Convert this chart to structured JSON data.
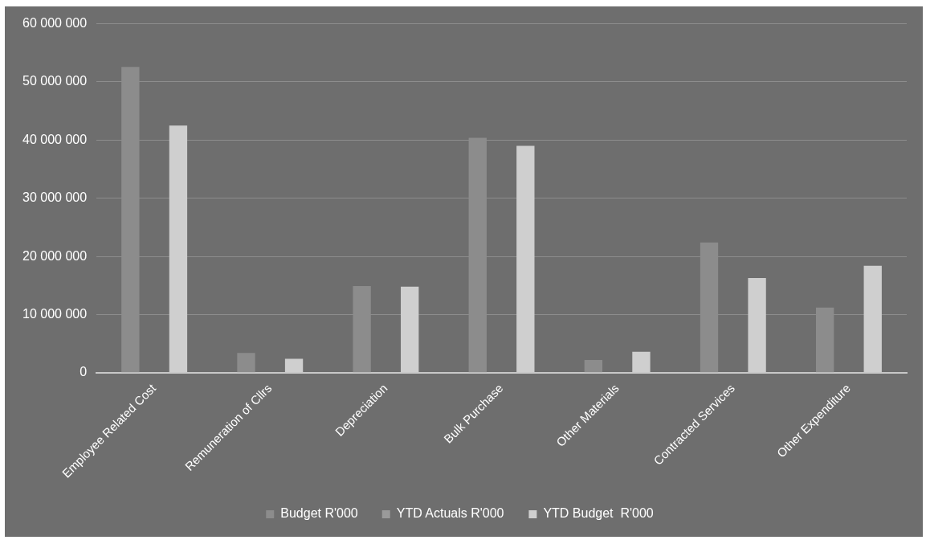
{
  "chart_data": {
    "type": "bar",
    "categories": [
      "Employee Related Cost",
      "Remuneration of Cllrs",
      "Depreciation",
      "Bulk Purchase",
      "Other Materials",
      "Contracted Services",
      "Other Expenditure"
    ],
    "series": [
      {
        "name": "Budget R'000",
        "color": "#8c8c8c",
        "values": [
          52600000,
          3400000,
          14900000,
          40400000,
          2200000,
          22400000,
          11200000
        ]
      },
      {
        "name": "YTD Actuals R'000",
        "color": "#9a9a9a",
        "values": [
          null,
          null,
          null,
          null,
          null,
          null,
          null
        ]
      },
      {
        "name": "YTD Budget  R'000",
        "color": "#cfcfcf",
        "values": [
          42500000,
          2400000,
          14800000,
          39000000,
          3600000,
          16300000,
          18400000
        ]
      }
    ],
    "ylim": [
      0,
      60000000
    ],
    "yticks": [
      {
        "value": 0,
        "label": "0"
      },
      {
        "value": 10000000,
        "label": "10 000 000"
      },
      {
        "value": 20000000,
        "label": "20 000 000"
      },
      {
        "value": 30000000,
        "label": "30 000 000"
      },
      {
        "value": 40000000,
        "label": "40 000 000"
      },
      {
        "value": 50000000,
        "label": "50 000 000"
      },
      {
        "value": 60000000,
        "label": "60 000 000"
      }
    ],
    "grid": "y",
    "legend": "bottom"
  }
}
